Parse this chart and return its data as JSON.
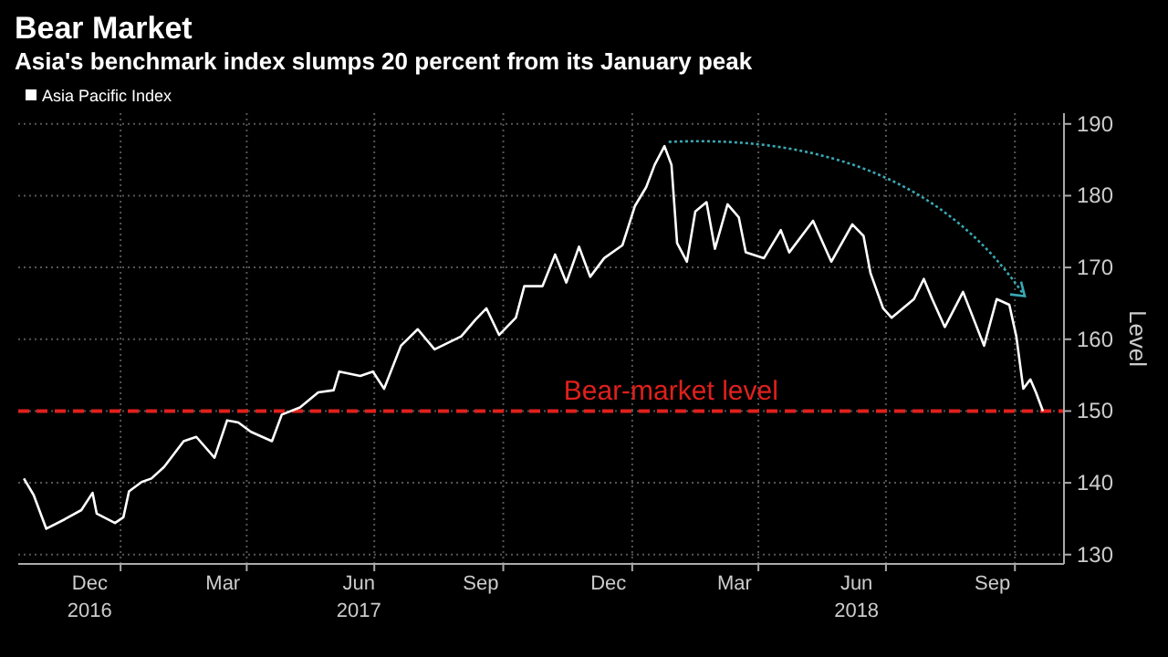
{
  "chart_data": {
    "type": "line",
    "title": "Bear Market",
    "subtitle": "Asia's benchmark index slumps 20 percent from its January peak",
    "ylabel": "Level",
    "x": [
      "2016-10-24",
      "2016-10-31",
      "2016-11-09",
      "2016-11-22",
      "2016-12-04",
      "2016-12-12",
      "2016-12-15",
      "2016-12-28",
      "2017-01-03",
      "2017-01-07",
      "2017-01-16",
      "2017-01-23",
      "2017-02-01",
      "2017-02-15",
      "2017-02-24",
      "2017-03-09",
      "2017-03-18",
      "2017-03-26",
      "2017-04-04",
      "2017-04-19",
      "2017-04-26",
      "2017-05-09",
      "2017-05-22",
      "2017-06-02",
      "2017-06-06",
      "2017-06-21",
      "2017-06-30",
      "2017-07-08",
      "2017-07-20",
      "2017-08-01",
      "2017-08-13",
      "2017-09-01",
      "2017-09-11",
      "2017-09-19",
      "2017-09-28",
      "2017-10-10",
      "2017-10-16",
      "2017-10-29",
      "2017-11-07",
      "2017-11-15",
      "2017-11-24",
      "2017-12-02",
      "2017-12-12",
      "2017-12-25",
      "2018-01-03",
      "2018-01-11",
      "2018-01-17",
      "2018-01-24",
      "2018-01-29",
      "2018-02-02",
      "2018-02-09",
      "2018-02-15",
      "2018-02-23",
      "2018-03-01",
      "2018-03-10",
      "2018-03-18",
      "2018-03-23",
      "2018-04-05",
      "2018-04-17",
      "2018-04-23",
      "2018-05-10",
      "2018-05-23",
      "2018-06-07",
      "2018-06-15",
      "2018-06-20",
      "2018-06-29",
      "2018-07-05",
      "2018-07-21",
      "2018-07-28",
      "2018-08-03",
      "2018-08-12",
      "2018-08-25",
      "2018-09-09",
      "2018-09-18",
      "2018-09-27",
      "2018-10-02",
      "2018-10-07",
      "2018-10-12",
      "2018-10-16",
      "2018-10-21"
    ],
    "series": [
      {
        "name": "Asia Pacific Index",
        "color": "#ffffff",
        "values": [
          140.6,
          138.3,
          133.6,
          134.9,
          136.2,
          138.6,
          135.7,
          134.4,
          135.2,
          138.8,
          140.1,
          140.6,
          142.2,
          145.8,
          146.4,
          143.5,
          148.7,
          148.4,
          147.1,
          145.8,
          149.5,
          150.5,
          152.6,
          152.9,
          155.5,
          154.9,
          155.5,
          153.1,
          159.1,
          161.4,
          158.6,
          160.4,
          162.7,
          164.3,
          160.6,
          163.0,
          167.4,
          167.4,
          171.8,
          167.9,
          172.9,
          168.7,
          171.3,
          173.1,
          178.6,
          181.2,
          184.3,
          186.9,
          184.3,
          173.4,
          170.8,
          177.8,
          179.1,
          172.6,
          178.8,
          177.0,
          172.1,
          171.3,
          175.2,
          172.1,
          176.5,
          170.8,
          176.0,
          174.4,
          169.2,
          164.3,
          163.0,
          165.6,
          168.4,
          165.6,
          161.7,
          166.6,
          159.1,
          165.6,
          164.8,
          160.4,
          153.1,
          154.4,
          152.6,
          150.0
        ]
      }
    ],
    "xlim": [
      "2016-10-20",
      "2018-11-05"
    ],
    "ylim": [
      128.7,
      191.5
    ],
    "yticks": [
      130,
      140,
      150,
      160,
      170,
      180,
      190
    ],
    "xticks": [
      {
        "value": "2016-12-10",
        "label": "Dec\n2016"
      },
      {
        "value": "2017-01-01",
        "label": null
      },
      {
        "value": "2017-03-15",
        "label": "Mar"
      },
      {
        "value": "2017-04-01",
        "label": null
      },
      {
        "value": "2017-06-20",
        "label": "Jun\n2017"
      },
      {
        "value": "2017-07-01",
        "label": null
      },
      {
        "value": "2017-09-15",
        "label": "Sep"
      },
      {
        "value": "2017-10-01",
        "label": null
      },
      {
        "value": "2017-12-15",
        "label": "Dec"
      },
      {
        "value": "2018-01-01",
        "label": null
      },
      {
        "value": "2018-03-15",
        "label": "Mar"
      },
      {
        "value": "2018-04-01",
        "label": null
      },
      {
        "value": "2018-06-10",
        "label": "Jun\n2018"
      },
      {
        "value": "2018-07-01",
        "label": null
      },
      {
        "value": "2018-09-15",
        "label": "Sep"
      },
      {
        "value": "2018-10-01",
        "label": null
      }
    ],
    "ref_lines": [
      {
        "axis": "y",
        "value": 150,
        "label": "Bear-market level",
        "color": "#e0201c",
        "line_style": "dashed"
      }
    ],
    "grid": true,
    "legend": "top left"
  }
}
